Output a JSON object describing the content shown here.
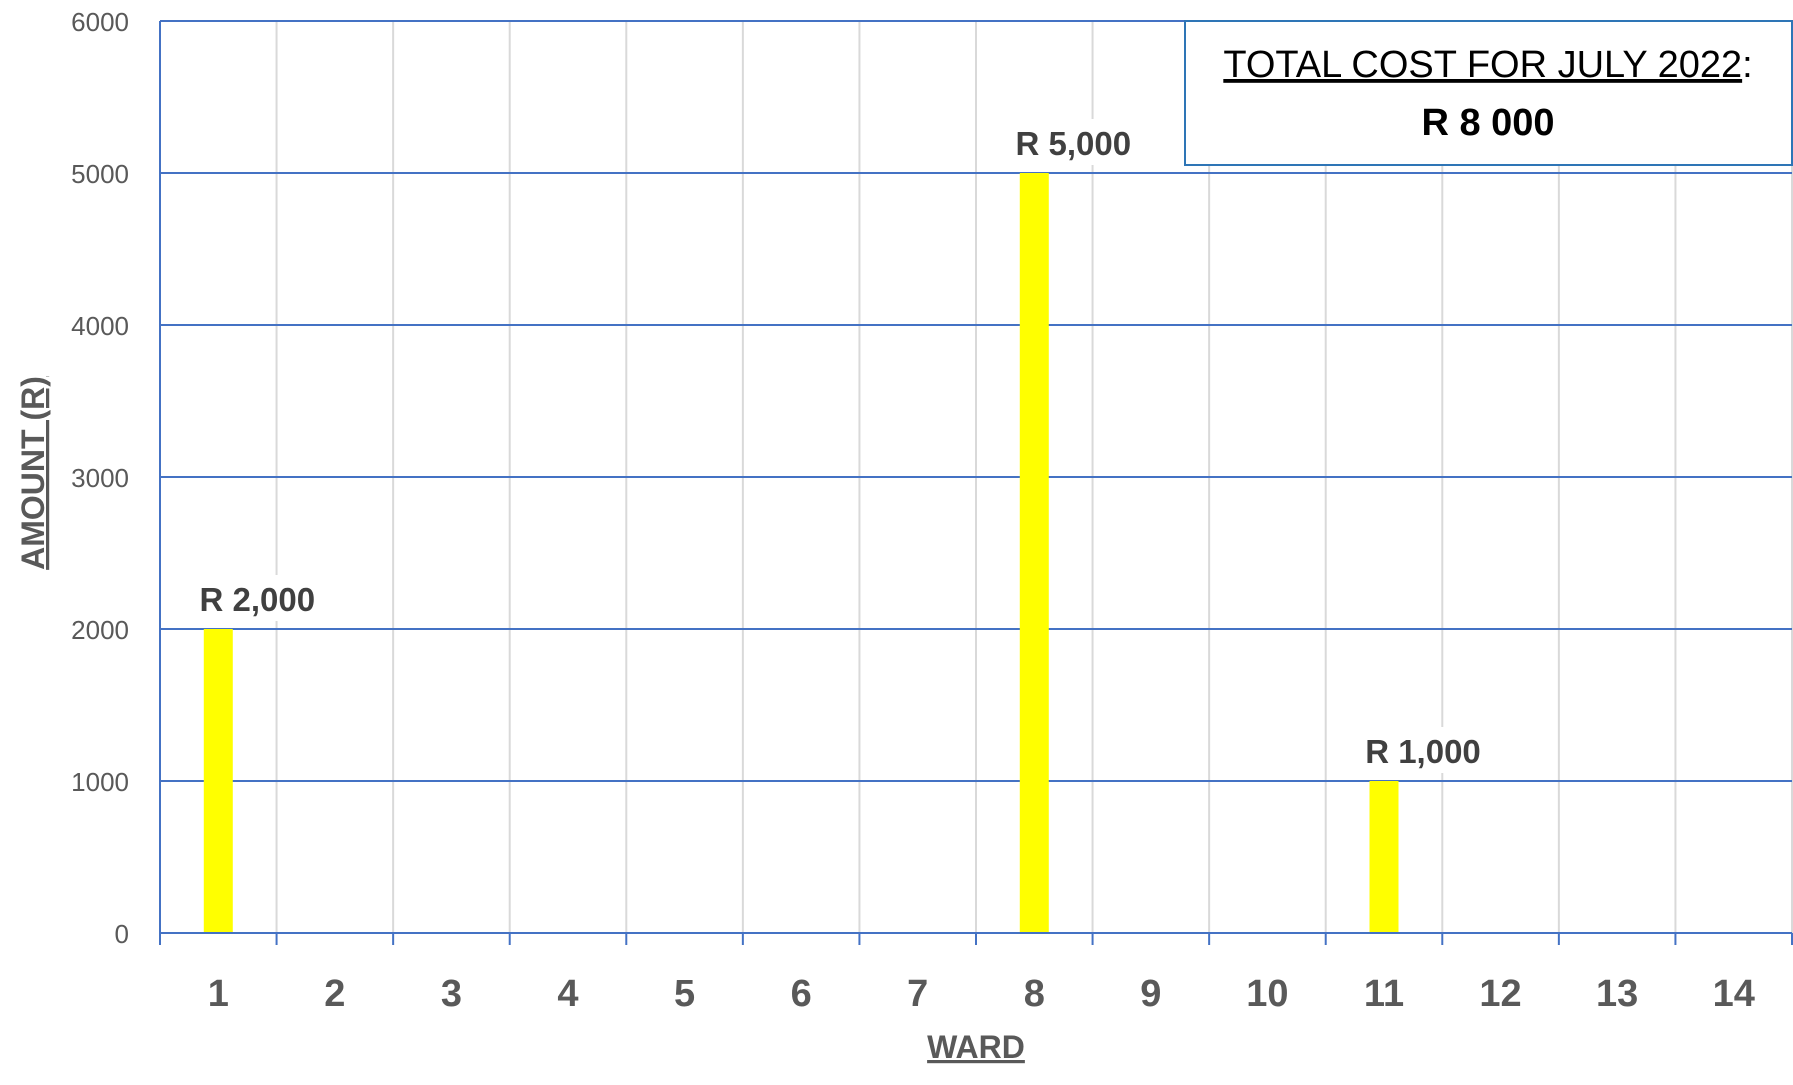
{
  "chart_data": {
    "type": "bar",
    "categories": [
      "1",
      "2",
      "3",
      "4",
      "5",
      "6",
      "7",
      "8",
      "9",
      "10",
      "11",
      "12",
      "13",
      "14"
    ],
    "values": [
      2000,
      0,
      0,
      0,
      0,
      0,
      0,
      5000,
      0,
      0,
      1000,
      0,
      0,
      0
    ],
    "data_labels": [
      "R 2,000",
      "",
      "",
      "",
      "",
      "",
      "",
      "R 5,000",
      "",
      "",
      "R 1,000",
      "",
      "",
      ""
    ],
    "title": "",
    "xlabel": "WARD",
    "ylabel": "AMOUNT (R)",
    "ylim": [
      0,
      6000
    ],
    "yticks": [
      0,
      1000,
      2000,
      3000,
      4000,
      5000,
      6000
    ],
    "grid": true,
    "legend": "none",
    "bar_color": "#FFFF00",
    "grid_color": "#4472C4",
    "vertical_grid_color": "#D9D9D9"
  },
  "annotation": {
    "label": "TOTAL COST FOR JULY 2022",
    "separator": ":",
    "value": "R 8 000"
  }
}
